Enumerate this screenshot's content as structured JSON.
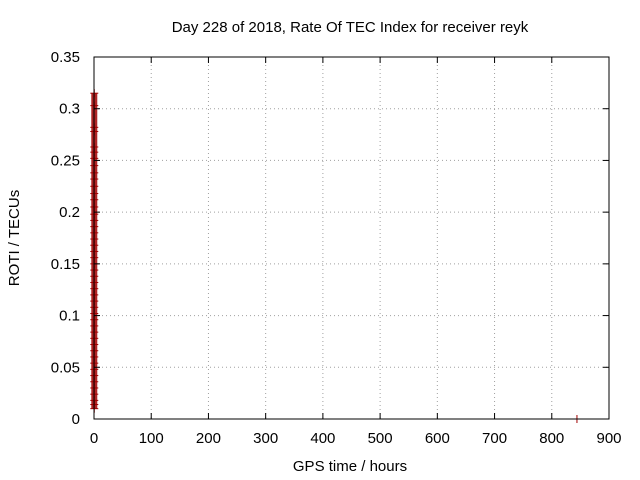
{
  "chart_data": {
    "type": "scatter",
    "title": "Day 228 of 2018, Rate Of TEC Index for receiver reyk",
    "xlabel": "GPS time / hours",
    "ylabel": "ROTI / TECUs",
    "xlim": [
      0,
      900
    ],
    "ylim": [
      0,
      0.35
    ],
    "xticks": [
      "0",
      "100",
      "200",
      "300",
      "400",
      "500",
      "600",
      "700",
      "800",
      "900"
    ],
    "yticks": [
      "0",
      "0.05",
      "0.1",
      "0.15",
      "0.2",
      "0.25",
      "0.3",
      "0.35"
    ],
    "grid": true,
    "marker_color": "#a00000",
    "series": [
      {
        "name": "",
        "points": [
          {
            "x": 0.5,
            "y": 0.315
          },
          {
            "x": 0.5,
            "y": 0.303
          },
          {
            "x": 0.5,
            "y": 0.282
          },
          {
            "x": 0.5,
            "y": 0.278
          },
          {
            "x": 0.5,
            "y": 0.263
          },
          {
            "x": 0.5,
            "y": 0.258
          },
          {
            "x": 0.5,
            "y": 0.252
          },
          {
            "x": 0.5,
            "y": 0.245
          },
          {
            "x": 0.5,
            "y": 0.238
          },
          {
            "x": 0.5,
            "y": 0.232
          },
          {
            "x": 0.5,
            "y": 0.225
          },
          {
            "x": 0.5,
            "y": 0.218
          },
          {
            "x": 0.5,
            "y": 0.212
          },
          {
            "x": 0.5,
            "y": 0.205
          },
          {
            "x": 0.5,
            "y": 0.198
          },
          {
            "x": 0.5,
            "y": 0.192
          },
          {
            "x": 0.5,
            "y": 0.186
          },
          {
            "x": 0.5,
            "y": 0.18
          },
          {
            "x": 0.5,
            "y": 0.174
          },
          {
            "x": 0.5,
            "y": 0.168
          },
          {
            "x": 0.5,
            "y": 0.162
          },
          {
            "x": 0.5,
            "y": 0.156
          },
          {
            "x": 0.5,
            "y": 0.15
          },
          {
            "x": 0.5,
            "y": 0.144
          },
          {
            "x": 0.5,
            "y": 0.138
          },
          {
            "x": 0.5,
            "y": 0.132
          },
          {
            "x": 0.5,
            "y": 0.126
          },
          {
            "x": 0.5,
            "y": 0.12
          },
          {
            "x": 0.5,
            "y": 0.114
          },
          {
            "x": 0.5,
            "y": 0.108
          },
          {
            "x": 0.5,
            "y": 0.102
          },
          {
            "x": 0.5,
            "y": 0.096
          },
          {
            "x": 0.5,
            "y": 0.09
          },
          {
            "x": 0.5,
            "y": 0.084
          },
          {
            "x": 0.5,
            "y": 0.078
          },
          {
            "x": 0.5,
            "y": 0.072
          },
          {
            "x": 0.5,
            "y": 0.066
          },
          {
            "x": 0.5,
            "y": 0.06
          },
          {
            "x": 0.5,
            "y": 0.054
          },
          {
            "x": 0.5,
            "y": 0.048
          },
          {
            "x": 0.5,
            "y": 0.042
          },
          {
            "x": 0.5,
            "y": 0.036
          },
          {
            "x": 0.5,
            "y": 0.03
          },
          {
            "x": 0.5,
            "y": 0.024
          },
          {
            "x": 0.5,
            "y": 0.018
          },
          {
            "x": 0.5,
            "y": 0.014
          },
          {
            "x": 0.5,
            "y": 0.01
          },
          {
            "x": 844,
            "y": 0.0
          }
        ]
      }
    ]
  }
}
